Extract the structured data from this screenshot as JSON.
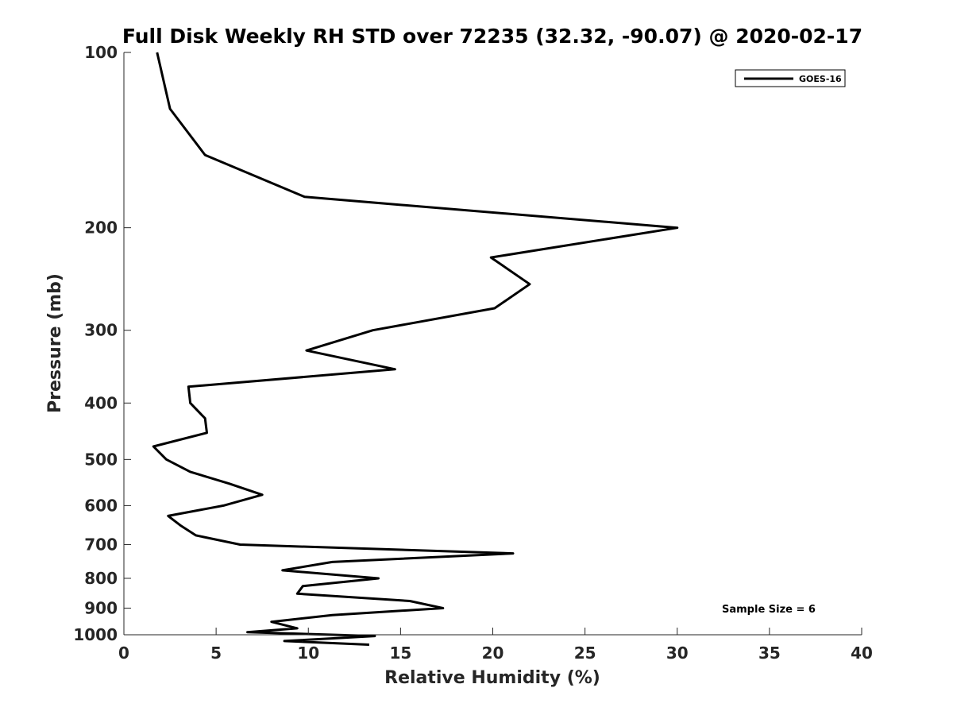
{
  "chart_data": {
    "type": "line",
    "title": "Full Disk Weekly RH STD over 72235 (32.32, -90.07) @ 2020-02-17",
    "xlabel": "Relative Humidity (%)",
    "ylabel": "Pressure (mb)",
    "xlim": [
      0,
      40
    ],
    "ylim": [
      100,
      1000
    ],
    "yscale": "log",
    "y_reversed": true,
    "xticks": [
      0,
      5,
      10,
      15,
      20,
      25,
      30,
      35,
      40
    ],
    "yticks": [
      100,
      200,
      300,
      400,
      500,
      600,
      700,
      800,
      900,
      1000
    ],
    "grid": false,
    "legend_position": "top-right",
    "annotation": "Sample Size = 6",
    "series": [
      {
        "name": "GOES-16",
        "color": "#000000",
        "points": [
          [
            1.8,
            100
          ],
          [
            2.5,
            125
          ],
          [
            4.4,
            150
          ],
          [
            9.8,
            177
          ],
          [
            30.0,
            200
          ],
          [
            19.9,
            225
          ],
          [
            22.0,
            250
          ],
          [
            20.1,
            275
          ],
          [
            13.5,
            300
          ],
          [
            9.9,
            325
          ],
          [
            14.7,
            350
          ],
          [
            3.5,
            375
          ],
          [
            3.6,
            400
          ],
          [
            4.4,
            425
          ],
          [
            4.5,
            450
          ],
          [
            1.6,
            475
          ],
          [
            2.3,
            500
          ],
          [
            3.6,
            525
          ],
          [
            5.7,
            550
          ],
          [
            7.5,
            575
          ],
          [
            5.4,
            600
          ],
          [
            2.4,
            625
          ],
          [
            3.1,
            650
          ],
          [
            3.9,
            675
          ],
          [
            6.3,
            700
          ],
          [
            21.1,
            725
          ],
          [
            11.3,
            750
          ],
          [
            8.6,
            775
          ],
          [
            13.8,
            800
          ],
          [
            9.7,
            825
          ],
          [
            9.4,
            850
          ],
          [
            15.5,
            875
          ],
          [
            17.3,
            900
          ],
          [
            11.3,
            925
          ],
          [
            8.0,
            950
          ],
          [
            9.4,
            975
          ],
          [
            6.7,
            990
          ],
          [
            13.6,
            1005
          ],
          [
            8.7,
            1025
          ],
          [
            13.3,
            1040
          ]
        ]
      }
    ]
  }
}
